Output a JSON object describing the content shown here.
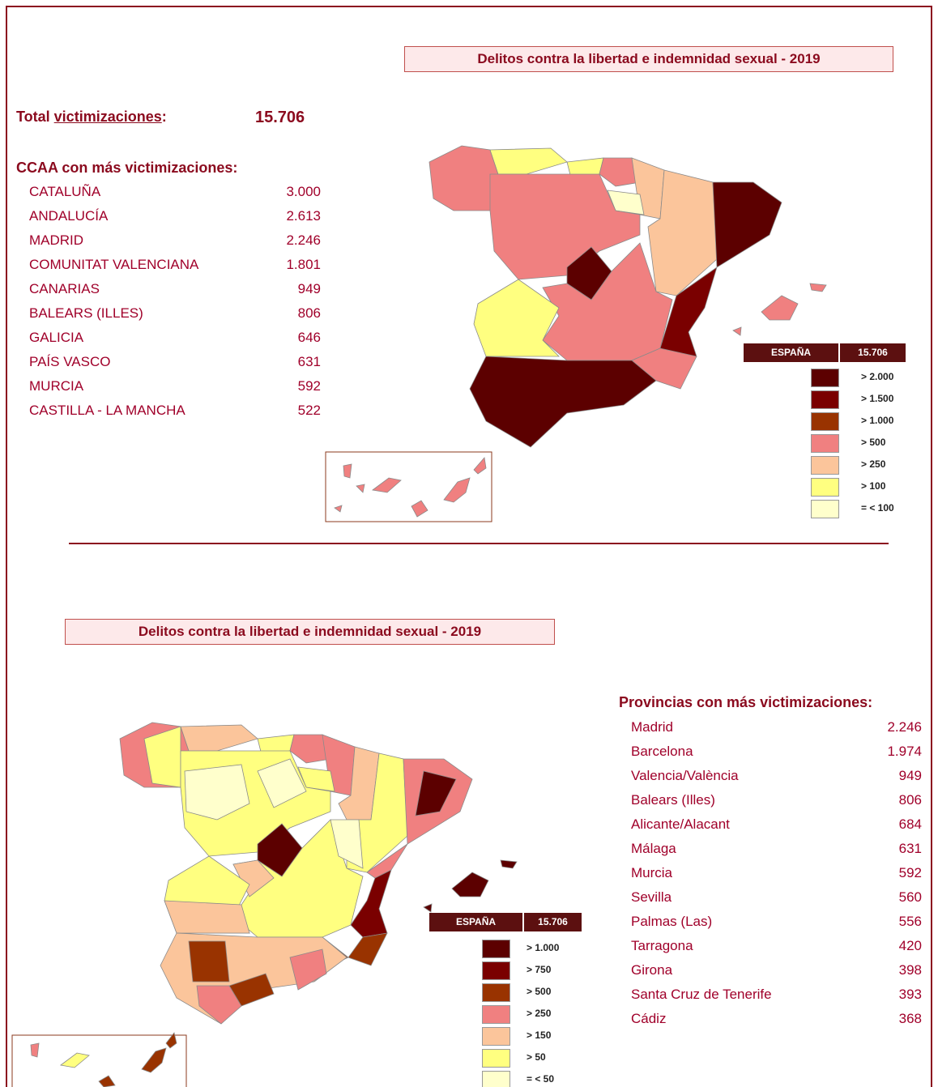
{
  "top": {
    "title": "Delitos contra la libertad e indemnidad sexual - 2019",
    "total_prefix": "Total ",
    "total_underlined": "victimizaciones",
    "total_suffix": ":",
    "total_value": "15.706",
    "list_heading": "CCAA  con más victimizaciones:",
    "rows": [
      [
        "CATALUÑA",
        "3.000"
      ],
      [
        "ANDALUCÍA",
        "2.613"
      ],
      [
        "MADRID",
        "2.246"
      ],
      [
        "COMUNITAT VALENCIANA",
        "1.801"
      ],
      [
        "CANARIAS",
        "949"
      ],
      [
        "BALEARS (ILLES)",
        "806"
      ],
      [
        "GALICIA",
        "646"
      ],
      [
        "PAÍS VASCO",
        "631"
      ],
      [
        "MURCIA",
        "592"
      ],
      [
        "CASTILLA - LA MANCHA",
        "522"
      ]
    ],
    "legend": {
      "header": "ESPAÑA",
      "total": "15.706",
      "items": [
        {
          "label": "> 2.000",
          "color": "#5c0000"
        },
        {
          "label": "> 1.500",
          "color": "#7a0000"
        },
        {
          "label": "> 1.000",
          "color": "#993300"
        },
        {
          "label": "> 500",
          "color": "#f08080"
        },
        {
          "label": "> 250",
          "color": "#fbc59b"
        },
        {
          "label": "> 100",
          "color": "#ffff80"
        },
        {
          "label": "= < 100",
          "color": "#ffffcc"
        }
      ]
    }
  },
  "bottom": {
    "title": "Delitos contra la libertad e indemnidad sexual - 2019",
    "list_heading": "Provincias con más victimizaciones:",
    "rows": [
      [
        "Madrid",
        "2.246"
      ],
      [
        "Barcelona",
        "1.974"
      ],
      [
        "Valencia/València",
        "949"
      ],
      [
        "Balears (Illes)",
        "806"
      ],
      [
        "Alicante/Alacant",
        "684"
      ],
      [
        "Málaga",
        "631"
      ],
      [
        "Murcia",
        "592"
      ],
      [
        "Sevilla",
        "560"
      ],
      [
        "Palmas (Las)",
        "556"
      ],
      [
        "Tarragona",
        "420"
      ],
      [
        "Girona",
        "398"
      ],
      [
        "Santa Cruz de Tenerife",
        "393"
      ],
      [
        "Cádiz",
        "368"
      ]
    ],
    "legend": {
      "header": "ESPAÑA",
      "total": "15.706",
      "items": [
        {
          "label": "> 1.000",
          "color": "#5c0000"
        },
        {
          "label": "> 750",
          "color": "#7a0000"
        },
        {
          "label": "> 500",
          "color": "#993300"
        },
        {
          "label": "> 250",
          "color": "#f08080"
        },
        {
          "label": "> 150",
          "color": "#fbc59b"
        },
        {
          "label": "> 50",
          "color": "#ffff80"
        },
        {
          "label": "= < 50",
          "color": "#ffffcc"
        }
      ]
    }
  }
}
